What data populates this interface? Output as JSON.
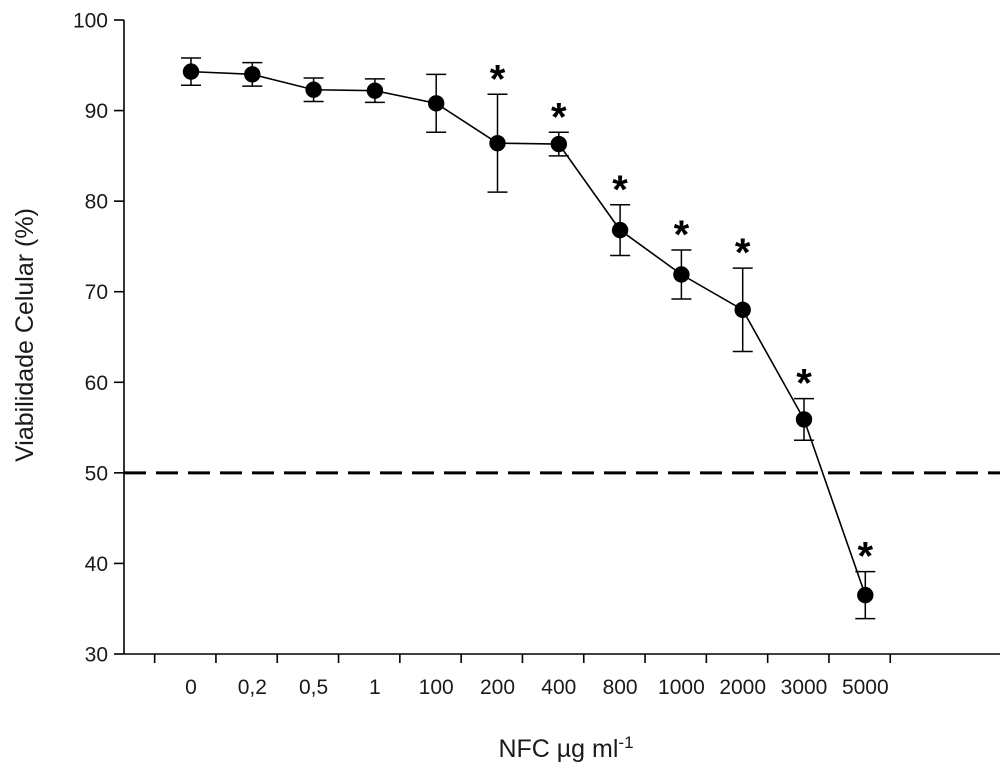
{
  "chart_data": {
    "type": "line",
    "title": "",
    "xlabel": "NFC µg ml",
    "xlabel_superscript": "-1",
    "ylabel": "Viabilidade Celular (%)",
    "ylim": [
      30,
      100
    ],
    "yticks": [
      "30",
      "40",
      "50",
      "60",
      "70",
      "80",
      "90",
      "100"
    ],
    "grid": false,
    "legend": "none",
    "categories": [
      "0",
      "0,2",
      "0,5",
      "1",
      "100",
      "200",
      "400",
      "800",
      "1000",
      "2000",
      "3000",
      "5000"
    ],
    "series": [
      {
        "values": [
          94.3,
          94.0,
          92.3,
          92.2,
          90.8,
          86.4,
          86.3,
          76.8,
          71.9,
          68.0,
          55.9,
          36.5
        ],
        "error": [
          1.5,
          1.3,
          1.3,
          1.3,
          3.2,
          5.4,
          1.3,
          2.8,
          2.7,
          4.6,
          2.3,
          2.6
        ],
        "significant": [
          false,
          false,
          false,
          false,
          false,
          true,
          true,
          true,
          true,
          true,
          true,
          true
        ],
        "significance_marker": "*",
        "color": "#000000"
      }
    ],
    "reference_line": {
      "y": 50,
      "style": "dashed",
      "color": "#000000"
    }
  }
}
